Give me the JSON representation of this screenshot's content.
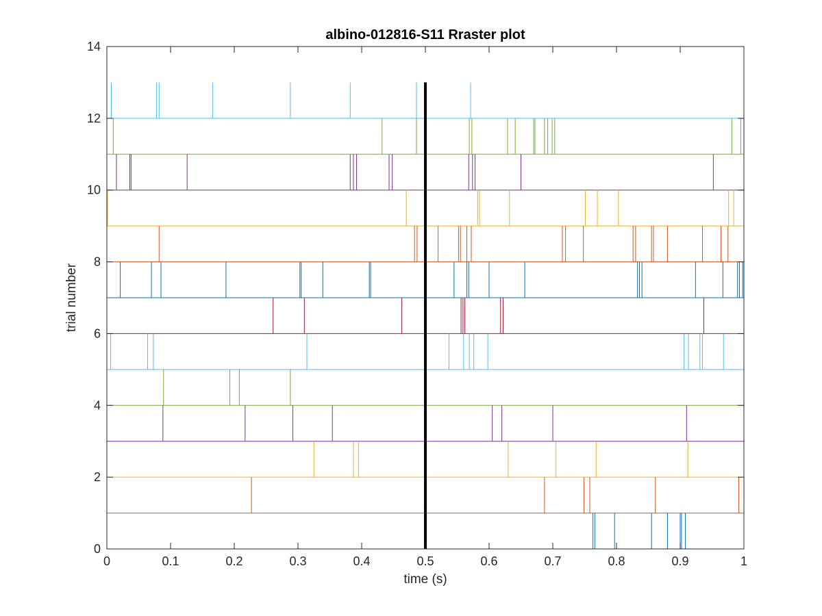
{
  "chart_data": {
    "type": "raster",
    "title": "albino-012816-S11 Rraster plot",
    "xlabel": "time (s)",
    "ylabel": "trial number",
    "xlim": [
      0,
      1
    ],
    "ylim": [
      0,
      14
    ],
    "xticks": [
      0,
      0.1,
      0.2,
      0.3,
      0.4,
      0.5,
      0.6,
      0.7,
      0.8,
      0.9,
      1
    ],
    "xtick_labels": [
      "0",
      "0.1",
      "0.2",
      "0.3",
      "0.4",
      "0.5",
      "0.6",
      "0.7",
      "0.8",
      "0.9",
      "1"
    ],
    "yticks": [
      0,
      2,
      4,
      6,
      8,
      10,
      12,
      14
    ],
    "ytick_labels": [
      "0",
      "2",
      "4",
      "6",
      "8",
      "10",
      "12",
      "14"
    ],
    "grid": false,
    "event_marker": {
      "x": 0.5,
      "y_range": [
        0,
        13
      ],
      "color": "#000000"
    },
    "trials": [
      {
        "trial": 0,
        "color": "#0072BD",
        "spikes": [
          0.763,
          0.766,
          0.797,
          0.855,
          0.88,
          0.9,
          0.902,
          0.908
        ]
      },
      {
        "trial": 1,
        "color": "#D95319",
        "spikes": [
          0.227,
          0.687,
          0.749,
          0.758,
          0.861,
          0.992
        ]
      },
      {
        "trial": 2,
        "color": "#EDB120",
        "spikes": [
          0.325,
          0.387,
          0.395,
          0.63,
          0.705,
          0.768,
          0.912
        ]
      },
      {
        "trial": 3,
        "color": "#7E2F8E",
        "spikes": [
          0.088,
          0.217,
          0.292,
          0.354,
          0.605,
          0.62,
          0.7,
          0.91
        ]
      },
      {
        "trial": 4,
        "color": "#77AC30",
        "spikes": [
          0.089,
          0.193,
          0.208,
          0.288
        ]
      },
      {
        "trial": 5,
        "color": "#4DBEEE",
        "spikes": [
          0.006,
          0.064,
          0.073,
          0.314,
          0.537,
          0.56,
          0.569,
          0.576,
          0.598,
          0.906,
          0.913,
          0.931,
          0.935,
          0.968
        ]
      },
      {
        "trial": 6,
        "color": "#A2142F",
        "spikes": [
          0.261,
          0.31,
          0.463,
          0.556,
          0.559,
          0.562,
          0.618,
          0.622,
          0.937
        ]
      },
      {
        "trial": 7,
        "color": "#0072BD",
        "spikes": [
          0.021,
          0.07,
          0.085,
          0.187,
          0.303,
          0.305,
          0.339,
          0.412,
          0.414,
          0.545,
          0.565,
          0.568,
          0.6,
          0.656,
          0.833,
          0.836,
          0.84,
          0.924,
          0.967,
          0.99,
          0.993,
          0.998
        ]
      },
      {
        "trial": 8,
        "color": "#D95319",
        "spikes": [
          0.082,
          0.483,
          0.487,
          0.52,
          0.552,
          0.555,
          0.565,
          0.572,
          0.715,
          0.72,
          0.748,
          0.826,
          0.83,
          0.855,
          0.858,
          0.88,
          0.935,
          0.964,
          0.975
        ]
      },
      {
        "trial": 9,
        "color": "#EDB120",
        "spikes": [
          0.001,
          0.47,
          0.582,
          0.585,
          0.632,
          0.751,
          0.77,
          0.803,
          0.976,
          0.984
        ]
      },
      {
        "trial": 10,
        "color": "#7E2F8E",
        "spikes": [
          0.015,
          0.036,
          0.038,
          0.126,
          0.382,
          0.387,
          0.392,
          0.443,
          0.448,
          0.568,
          0.574,
          0.578,
          0.65,
          0.952
        ]
      },
      {
        "trial": 11,
        "color": "#77AC30",
        "spikes": [
          0.01,
          0.432,
          0.486,
          0.569,
          0.573,
          0.629,
          0.641,
          0.67,
          0.672,
          0.687,
          0.692,
          0.699,
          0.703,
          0.981,
          0.995
        ]
      },
      {
        "trial": 12,
        "color": "#4DBEEE",
        "spikes": [
          0.007,
          0.078,
          0.082,
          0.166,
          0.288,
          0.382,
          0.486,
          0.571
        ]
      }
    ]
  }
}
